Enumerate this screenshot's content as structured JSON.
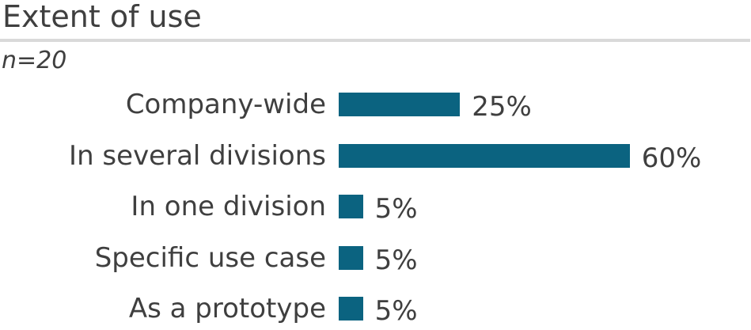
{
  "header": {
    "title": "Extent of use",
    "note": "n=20"
  },
  "colors": {
    "background": "#ffffff",
    "bar": "#0b6380",
    "text": "#3f3f3f",
    "divider": "#d9d9d9"
  },
  "chart_data": {
    "type": "bar",
    "orientation": "horizontal",
    "title": "Extent of use",
    "subtitle": "n=20",
    "categories": [
      "Company-wide",
      "In several divisions",
      "In one division",
      "Specific use case",
      "As a prototype"
    ],
    "values": [
      25,
      60,
      5,
      5,
      5
    ],
    "value_suffix": "%",
    "value_labels": [
      "25%",
      "60%",
      "5%",
      "5%",
      "5%"
    ],
    "bar_color": "#0b6380",
    "grid": false,
    "legend": false,
    "axes_visible": false
  }
}
